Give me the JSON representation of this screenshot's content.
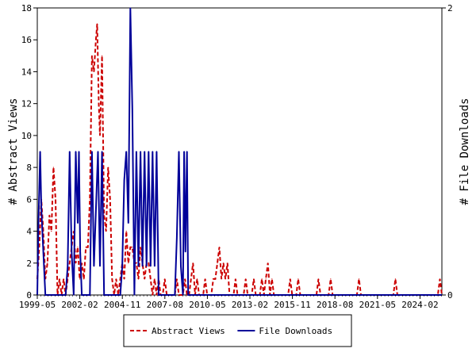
{
  "chart_data": {
    "type": "line",
    "x_tick_labels": [
      "1999-05",
      "2002-02",
      "2004-11",
      "2007-08",
      "2010-05",
      "2013-02",
      "2015-11",
      "2018-08",
      "2021-05",
      "2024-02"
    ],
    "y_left": {
      "label": "# Abstract Views",
      "range": [
        0,
        18
      ],
      "ticks": [
        0,
        2,
        4,
        6,
        8,
        10,
        12,
        14,
        16,
        18
      ]
    },
    "y_right": {
      "label": "# File Downloads",
      "range": [
        0,
        2
      ],
      "ticks": [
        0,
        2
      ]
    },
    "legend_position": "bottom",
    "series": [
      {
        "name": "Abstract Views",
        "axis": "left",
        "color": "#cc0000",
        "style": "dashed",
        "points": [
          [
            0.0,
            1
          ],
          [
            0.5,
            3
          ],
          [
            1.0,
            6
          ],
          [
            1.5,
            4
          ],
          [
            2.0,
            1
          ],
          [
            2.5,
            2
          ],
          [
            3.0,
            5
          ],
          [
            3.5,
            4
          ],
          [
            4.0,
            8
          ],
          [
            4.5,
            6
          ],
          [
            5.0,
            0
          ],
          [
            5.5,
            1
          ],
          [
            6.0,
            0
          ],
          [
            6.5,
            1
          ],
          [
            7.0,
            0
          ],
          [
            7.5,
            1
          ],
          [
            8.0,
            2
          ],
          [
            8.5,
            3
          ],
          [
            9.0,
            4
          ],
          [
            9.5,
            2
          ],
          [
            10.0,
            3
          ],
          [
            10.5,
            1
          ],
          [
            11.0,
            2
          ],
          [
            11.5,
            1
          ],
          [
            12.0,
            3
          ],
          [
            12.5,
            3
          ],
          [
            13.0,
            6
          ],
          [
            13.5,
            15
          ],
          [
            14.0,
            14
          ],
          [
            14.5,
            16
          ],
          [
            14.8,
            17
          ],
          [
            15.2,
            12
          ],
          [
            15.5,
            10
          ],
          [
            16.0,
            15
          ],
          [
            16.5,
            5
          ],
          [
            17.0,
            4
          ],
          [
            17.5,
            8
          ],
          [
            18.0,
            6
          ],
          [
            18.5,
            1
          ],
          [
            19.0,
            0
          ],
          [
            19.5,
            1
          ],
          [
            20.0,
            0
          ],
          [
            20.5,
            1
          ],
          [
            21.0,
            2
          ],
          [
            21.5,
            1
          ],
          [
            22.0,
            4
          ],
          [
            22.5,
            2
          ],
          [
            23.0,
            3
          ],
          [
            23.5,
            3
          ],
          [
            24.0,
            2
          ],
          [
            24.5,
            2
          ],
          [
            25.0,
            1
          ],
          [
            25.5,
            3
          ],
          [
            26.0,
            2
          ],
          [
            26.5,
            1
          ],
          [
            27.0,
            2
          ],
          [
            27.5,
            2
          ],
          [
            28.0,
            1
          ],
          [
            28.5,
            0
          ],
          [
            29.0,
            1
          ],
          [
            29.5,
            0
          ],
          [
            30.0,
            1
          ],
          [
            30.5,
            0
          ],
          [
            31.0,
            0
          ],
          [
            31.5,
            1
          ],
          [
            32.0,
            0
          ],
          [
            32.5,
            0
          ],
          [
            33.0,
            0
          ],
          [
            34.0,
            0
          ],
          [
            34.5,
            1
          ],
          [
            35.0,
            0
          ],
          [
            35.5,
            0
          ],
          [
            36.0,
            0
          ],
          [
            36.5,
            1
          ],
          [
            37.0,
            0
          ],
          [
            37.5,
            0
          ],
          [
            38.0,
            1
          ],
          [
            38.5,
            2
          ],
          [
            39.0,
            0
          ],
          [
            39.5,
            1
          ],
          [
            40.0,
            0
          ],
          [
            40.5,
            0
          ],
          [
            41.0,
            0
          ],
          [
            41.5,
            1
          ],
          [
            42.0,
            0
          ],
          [
            43.0,
            0
          ],
          [
            43.5,
            1
          ],
          [
            44.0,
            1
          ],
          [
            44.5,
            2
          ],
          [
            45.0,
            3
          ],
          [
            45.5,
            1
          ],
          [
            46.0,
            2
          ],
          [
            46.5,
            1
          ],
          [
            47.0,
            2
          ],
          [
            47.5,
            0
          ],
          [
            48.0,
            0
          ],
          [
            48.5,
            0
          ],
          [
            49.0,
            1
          ],
          [
            49.5,
            0
          ],
          [
            50.0,
            0
          ],
          [
            51.0,
            0
          ],
          [
            51.5,
            1
          ],
          [
            52.0,
            0
          ],
          [
            52.5,
            0
          ],
          [
            53.0,
            0
          ],
          [
            53.5,
            1
          ],
          [
            54.0,
            0
          ],
          [
            55.0,
            0
          ],
          [
            55.5,
            1
          ],
          [
            56.0,
            0
          ],
          [
            56.5,
            1
          ],
          [
            57.0,
            2
          ],
          [
            57.5,
            0
          ],
          [
            58.0,
            1
          ],
          [
            58.5,
            0
          ],
          [
            59.0,
            0
          ],
          [
            60.0,
            0
          ],
          [
            61.0,
            0
          ],
          [
            62.0,
            0
          ],
          [
            62.5,
            1
          ],
          [
            63.0,
            0
          ],
          [
            64.0,
            0
          ],
          [
            64.5,
            1
          ],
          [
            65.0,
            0
          ],
          [
            66.0,
            0
          ],
          [
            67.0,
            0
          ],
          [
            68.0,
            0
          ],
          [
            69.0,
            0
          ],
          [
            69.5,
            1
          ],
          [
            70.0,
            0
          ],
          [
            71.0,
            0
          ],
          [
            72.0,
            0
          ],
          [
            72.5,
            1
          ],
          [
            73.0,
            0
          ],
          [
            74.0,
            0
          ],
          [
            75.0,
            0
          ],
          [
            76.0,
            0
          ],
          [
            77.0,
            0
          ],
          [
            78.0,
            0
          ],
          [
            79.0,
            0
          ],
          [
            79.5,
            1
          ],
          [
            80.0,
            0
          ],
          [
            81.0,
            0
          ],
          [
            82.0,
            0
          ],
          [
            83.0,
            0
          ],
          [
            84.0,
            0
          ],
          [
            85.0,
            0
          ],
          [
            86.0,
            0
          ],
          [
            87.0,
            0
          ],
          [
            88.0,
            0
          ],
          [
            88.5,
            1
          ],
          [
            89.0,
            0
          ],
          [
            90.0,
            0
          ],
          [
            91.0,
            0
          ],
          [
            92.0,
            0
          ],
          [
            93.0,
            0
          ],
          [
            94.0,
            0
          ],
          [
            95.0,
            0
          ],
          [
            96.0,
            0
          ],
          [
            97.0,
            0
          ],
          [
            98.0,
            0
          ],
          [
            99.0,
            0
          ],
          [
            99.5,
            1
          ],
          [
            100.0,
            0
          ]
        ]
      },
      {
        "name": "File Downloads",
        "axis": "right",
        "color": "#000099",
        "style": "solid",
        "points": [
          [
            0.0,
            0
          ],
          [
            0.3,
            0.5
          ],
          [
            0.7,
            1
          ],
          [
            1.0,
            0.6
          ],
          [
            1.5,
            0.3
          ],
          [
            2.0,
            0
          ],
          [
            7.0,
            0
          ],
          [
            7.5,
            0.2
          ],
          [
            8.0,
            1
          ],
          [
            8.5,
            0.3
          ],
          [
            9.0,
            0
          ],
          [
            9.5,
            1
          ],
          [
            10.0,
            0.5
          ],
          [
            10.3,
            1
          ],
          [
            10.6,
            0.3
          ],
          [
            11.0,
            0
          ],
          [
            12.0,
            0
          ],
          [
            12.5,
            0
          ],
          [
            13.0,
            0
          ],
          [
            13.5,
            1
          ],
          [
            14.0,
            0.2
          ],
          [
            15.0,
            1
          ],
          [
            15.5,
            0.2
          ],
          [
            16.0,
            1
          ],
          [
            16.5,
            0
          ],
          [
            17.0,
            0
          ],
          [
            18.0,
            0
          ],
          [
            19.0,
            0
          ],
          [
            20.0,
            0
          ],
          [
            20.5,
            0
          ],
          [
            21.0,
            0.2
          ],
          [
            21.5,
            0.8
          ],
          [
            22.0,
            1
          ],
          [
            22.5,
            0.5
          ],
          [
            23.0,
            2
          ],
          [
            23.5,
            1.3
          ],
          [
            24.0,
            0
          ],
          [
            24.5,
            1
          ],
          [
            25.0,
            0.2
          ],
          [
            25.5,
            1
          ],
          [
            26.0,
            0.2
          ],
          [
            26.5,
            1
          ],
          [
            27.0,
            0.2
          ],
          [
            27.5,
            1
          ],
          [
            28.0,
            0.2
          ],
          [
            28.5,
            1
          ],
          [
            29.0,
            0.2
          ],
          [
            29.5,
            1
          ],
          [
            30.0,
            0
          ],
          [
            30.5,
            0
          ],
          [
            31.0,
            0
          ],
          [
            31.5,
            0
          ],
          [
            32.0,
            0
          ],
          [
            32.5,
            0
          ],
          [
            33.0,
            0
          ],
          [
            33.5,
            0
          ],
          [
            34.0,
            0
          ],
          [
            34.5,
            0.4
          ],
          [
            35.0,
            1
          ],
          [
            35.5,
            0.2
          ],
          [
            36.0,
            0
          ],
          [
            36.3,
            1
          ],
          [
            36.6,
            0.3
          ],
          [
            37.0,
            1
          ],
          [
            37.3,
            0
          ],
          [
            38.0,
            0
          ],
          [
            40.0,
            0
          ],
          [
            45.0,
            0
          ],
          [
            50.0,
            0
          ],
          [
            55.0,
            0
          ],
          [
            60.0,
            0
          ],
          [
            65.0,
            0
          ],
          [
            70.0,
            0
          ],
          [
            75.0,
            0
          ],
          [
            80.0,
            0
          ],
          [
            85.0,
            0
          ],
          [
            90.0,
            0
          ],
          [
            95.0,
            0
          ],
          [
            100.0,
            0
          ]
        ]
      }
    ]
  }
}
